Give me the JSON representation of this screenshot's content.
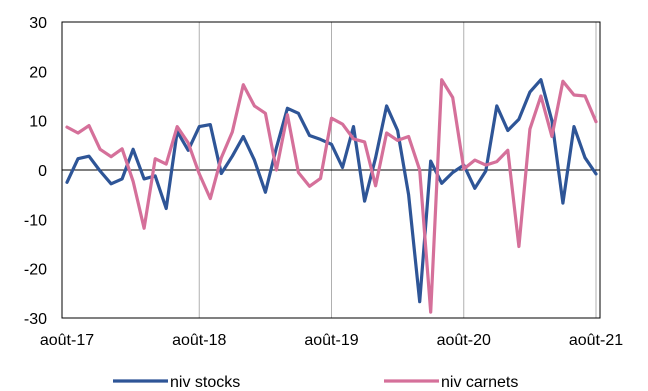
{
  "chart_data": {
    "type": "line",
    "x_tick_labels": [
      "août-17",
      "août-18",
      "août-19",
      "août-20",
      "août-21"
    ],
    "x_tick_index": [
      0,
      12,
      24,
      36,
      48
    ],
    "y_ticks": [
      -30,
      -20,
      -10,
      0,
      10,
      20,
      30
    ],
    "ylim": [
      -30,
      30
    ],
    "grid": "vertical",
    "legend_position": "bottom",
    "series": [
      {
        "name": "niv stocks",
        "color": "#2e5597",
        "values": [
          -2.5,
          2.3,
          2.8,
          -0.2,
          -2.8,
          -1.8,
          4.2,
          -1.8,
          -1.2,
          -7.8,
          7.8,
          4.0,
          8.8,
          9.2,
          -0.7,
          2.8,
          6.8,
          2.0,
          -4.5,
          4.5,
          12.5,
          11.5,
          7.0,
          6.2,
          5.2,
          0.5,
          8.8,
          -6.3,
          2.5,
          13.0,
          8.0,
          -5.0,
          -26.7,
          1.8,
          -2.7,
          -0.5,
          1.0,
          -3.7,
          -0.2,
          13.0,
          8.0,
          10.3,
          15.8,
          18.3,
          10.0,
          -6.7,
          8.8,
          2.5,
          -0.8
        ]
      },
      {
        "name": "niv carnets",
        "color": "#d5709a",
        "values": [
          8.7,
          7.5,
          9.0,
          4.2,
          2.7,
          4.3,
          -2.3,
          -11.8,
          2.3,
          1.2,
          8.8,
          5.5,
          -0.8,
          -5.8,
          2.5,
          7.7,
          17.3,
          13.0,
          11.5,
          0.0,
          11.2,
          -0.5,
          -3.3,
          -1.7,
          10.5,
          9.3,
          6.3,
          5.7,
          -3.2,
          7.5,
          6.0,
          6.8,
          0.0,
          -28.8,
          18.3,
          14.7,
          0.2,
          2.0,
          1.0,
          1.7,
          4.0,
          -15.5,
          8.3,
          15.0,
          6.8,
          18.0,
          15.2,
          15.0,
          9.8
        ]
      }
    ]
  }
}
